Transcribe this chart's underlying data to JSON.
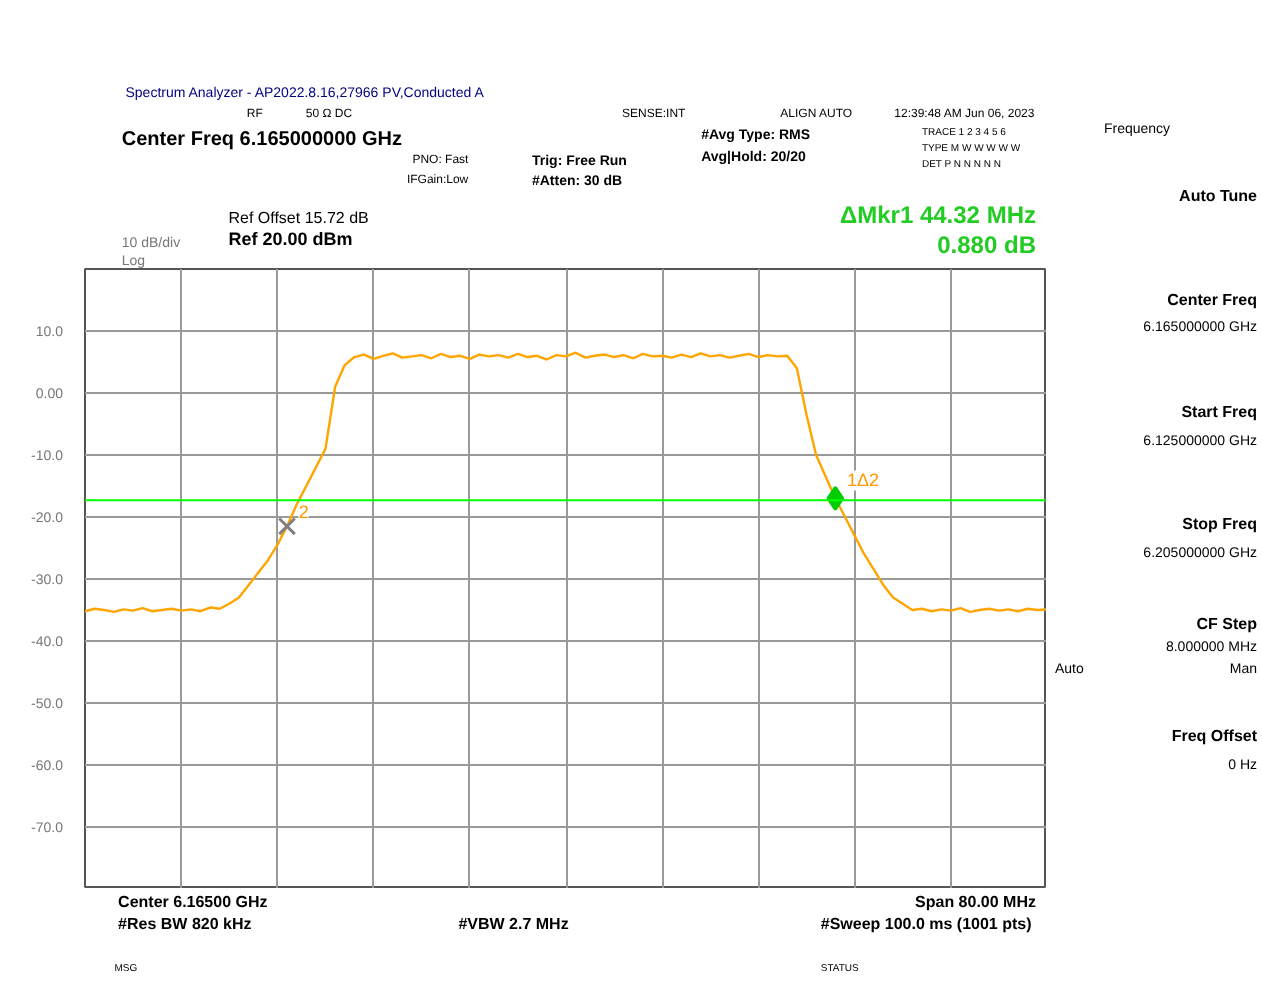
{
  "chart_data": {
    "type": "line",
    "title": "Spectrum Analyzer - AP2022.8.16,27966 PV,Conducted A",
    "categories": [
      null,
      null,
      null,
      null,
      null,
      null,
      null,
      null,
      null,
      null,
      null,
      null,
      null,
      null,
      null,
      null,
      null,
      null,
      null,
      null,
      null,
      null,
      null,
      null,
      null,
      null,
      null,
      null,
      null,
      null,
      null,
      null,
      null,
      null,
      null,
      null,
      null,
      null,
      null,
      null,
      null,
      null,
      null,
      null,
      null,
      null,
      null,
      null,
      null,
      null,
      null,
      null,
      null,
      null,
      null,
      null,
      null,
      null,
      null,
      null,
      null,
      null,
      null,
      null,
      null,
      null,
      null,
      null,
      null,
      null,
      null,
      null,
      null,
      null,
      null,
      null,
      null,
      null,
      null,
      null,
      null,
      null,
      null,
      null,
      null,
      null,
      null,
      null,
      null,
      null,
      null,
      null,
      null,
      null,
      null,
      null,
      null,
      null,
      null,
      null,
      null
    ],
    "series": [
      {
        "color": "#ffa500",
        "values": [
          -35.2,
          -34.8,
          -35.0,
          -35.3,
          -34.9,
          -35.1,
          -34.7,
          -35.2,
          -35.0,
          -34.8,
          -35.1,
          -34.9,
          -35.2,
          -34.6,
          -34.8,
          -34,
          -33,
          -31,
          -29,
          -27,
          -24.5,
          -21.5,
          -18,
          -15,
          -12,
          -9,
          1,
          4.5,
          5.8,
          6.2,
          5.5,
          6.0,
          6.4,
          5.7,
          5.9,
          6.1,
          5.6,
          6.3,
          5.8,
          6.0,
          5.5,
          6.2,
          5.9,
          6.1,
          5.7,
          6.3,
          5.8,
          6.0,
          5.4,
          6.1,
          5.9,
          6.5,
          5.7,
          6.0,
          6.2,
          5.8,
          6.1,
          5.6,
          6.3,
          5.9,
          6.0,
          5.7,
          6.2,
          5.8,
          6.4,
          5.9,
          6.1,
          5.7,
          6.0,
          6.3,
          5.8,
          6.1,
          5.9,
          6.0,
          4,
          -3.5,
          -10,
          -13.5,
          -17,
          -20,
          -23,
          -26,
          -28.5,
          -31,
          -33,
          -34,
          -35.0,
          -34.8,
          -35.2,
          -34.9,
          -35.1,
          -34.7,
          -35.3,
          -35.0,
          -34.8,
          -35.1,
          -34.9,
          -35.2,
          -34.8,
          -35.0,
          -34.9
        ]
      },
      {
        "type": "scatter",
        "name": "2",
        "marker": "cross",
        "color": "#808080",
        "values": [
          null,
          null,
          null,
          null,
          null,
          null,
          null,
          null,
          null,
          null,
          null,
          null,
          null,
          null,
          null,
          null,
          null,
          null,
          null,
          null,
          null,
          -21.5,
          null,
          null,
          null,
          null,
          null,
          null,
          null,
          null,
          null,
          null,
          null,
          null,
          null,
          null,
          null,
          null,
          null,
          null,
          null,
          null,
          null,
          null,
          null,
          null,
          null,
          null,
          null,
          null,
          null,
          null,
          null,
          null,
          null,
          null,
          null,
          null,
          null,
          null,
          null,
          null,
          null,
          null,
          null,
          null,
          null,
          null,
          null,
          null,
          null,
          null,
          null,
          null,
          null,
          null,
          null,
          null,
          null,
          null,
          null,
          null,
          null,
          null,
          null,
          null,
          null,
          null,
          null,
          null,
          null,
          null,
          null,
          null,
          null,
          null,
          null,
          null,
          null,
          null,
          null
        ]
      },
      {
        "type": "scatter",
        "name": "1Δ2",
        "marker": "diamond",
        "color": "#00cc00",
        "values": [
          null,
          null,
          null,
          null,
          null,
          null,
          null,
          null,
          null,
          null,
          null,
          null,
          null,
          null,
          null,
          null,
          null,
          null,
          null,
          null,
          null,
          null,
          null,
          null,
          null,
          null,
          null,
          null,
          null,
          null,
          null,
          null,
          null,
          null,
          null,
          null,
          null,
          null,
          null,
          null,
          null,
          null,
          null,
          null,
          null,
          null,
          null,
          null,
          null,
          null,
          null,
          null,
          null,
          null,
          null,
          null,
          null,
          null,
          null,
          null,
          null,
          null,
          null,
          null,
          null,
          null,
          null,
          null,
          null,
          null,
          null,
          null,
          null,
          null,
          null,
          null,
          null,
          null,
          -17,
          null,
          null,
          null,
          null,
          null,
          null,
          null,
          null,
          null,
          null,
          null,
          null,
          null,
          null,
          null,
          null,
          null,
          null,
          null,
          null,
          null,
          null
        ]
      }
    ],
    "ylim": [
      -80,
      20
    ],
    "yticks": [
      {
        "value": 20,
        "label": null
      },
      {
        "value": 10,
        "label": "10.0"
      },
      {
        "value": 0,
        "label": "0.00"
      },
      {
        "value": -10,
        "label": "-10.0"
      },
      {
        "value": -20,
        "label": "-20.0"
      },
      {
        "value": -30,
        "label": "-30.0"
      },
      {
        "value": -40,
        "label": "-40.0"
      },
      {
        "value": -50,
        "label": "-50.0"
      },
      {
        "value": -60,
        "label": "-60.0"
      },
      {
        "value": -70,
        "label": "-70.0"
      },
      {
        "value": -80,
        "label": null
      }
    ],
    "ref_lines": [
      {
        "axis": "y",
        "value": -17.3,
        "color": "#00ff00"
      }
    ],
    "grid": true,
    "tick_labels": "y",
    "annotations": [
      "RF",
      "50 Ω DC",
      "SENSE:INT",
      "ALIGN AUTO",
      "12:39:48 AM Jun 06, 2023",
      "Center Freq 6.165000000 GHz",
      "PNO: Fast",
      "IFGain:Low",
      "Trig: Free Run",
      "#Atten: 30 dB",
      "#Avg Type: RMS",
      "Avg|Hold: 20/20",
      "TRACE 1 2 3 4 5 6",
      "TYPE M W W W W W",
      "DET P N N N N N",
      "Ref Offset 15.72 dB",
      "10 dB/div",
      "Ref 20.00 dBm",
      "Log",
      "ΔMkr1 44.32 MHz",
      "0.880 dB",
      "Center 6.16500 GHz",
      "Span 80.00 MHz",
      "#Res BW 820 kHz",
      "#VBW 2.7 MHz",
      "#Sweep  100.0 ms (1001 pts)",
      "MSG",
      "STATUS",
      "Frequency",
      "Auto Tune",
      "Center Freq",
      "6.165000000 GHz",
      "Start Freq",
      "6.125000000 GHz",
      "Stop Freq",
      "6.205000000 GHz",
      "CF Step",
      "8.000000 MHz",
      "Auto",
      "Man",
      "Freq Offset",
      "0 Hz"
    ]
  }
}
